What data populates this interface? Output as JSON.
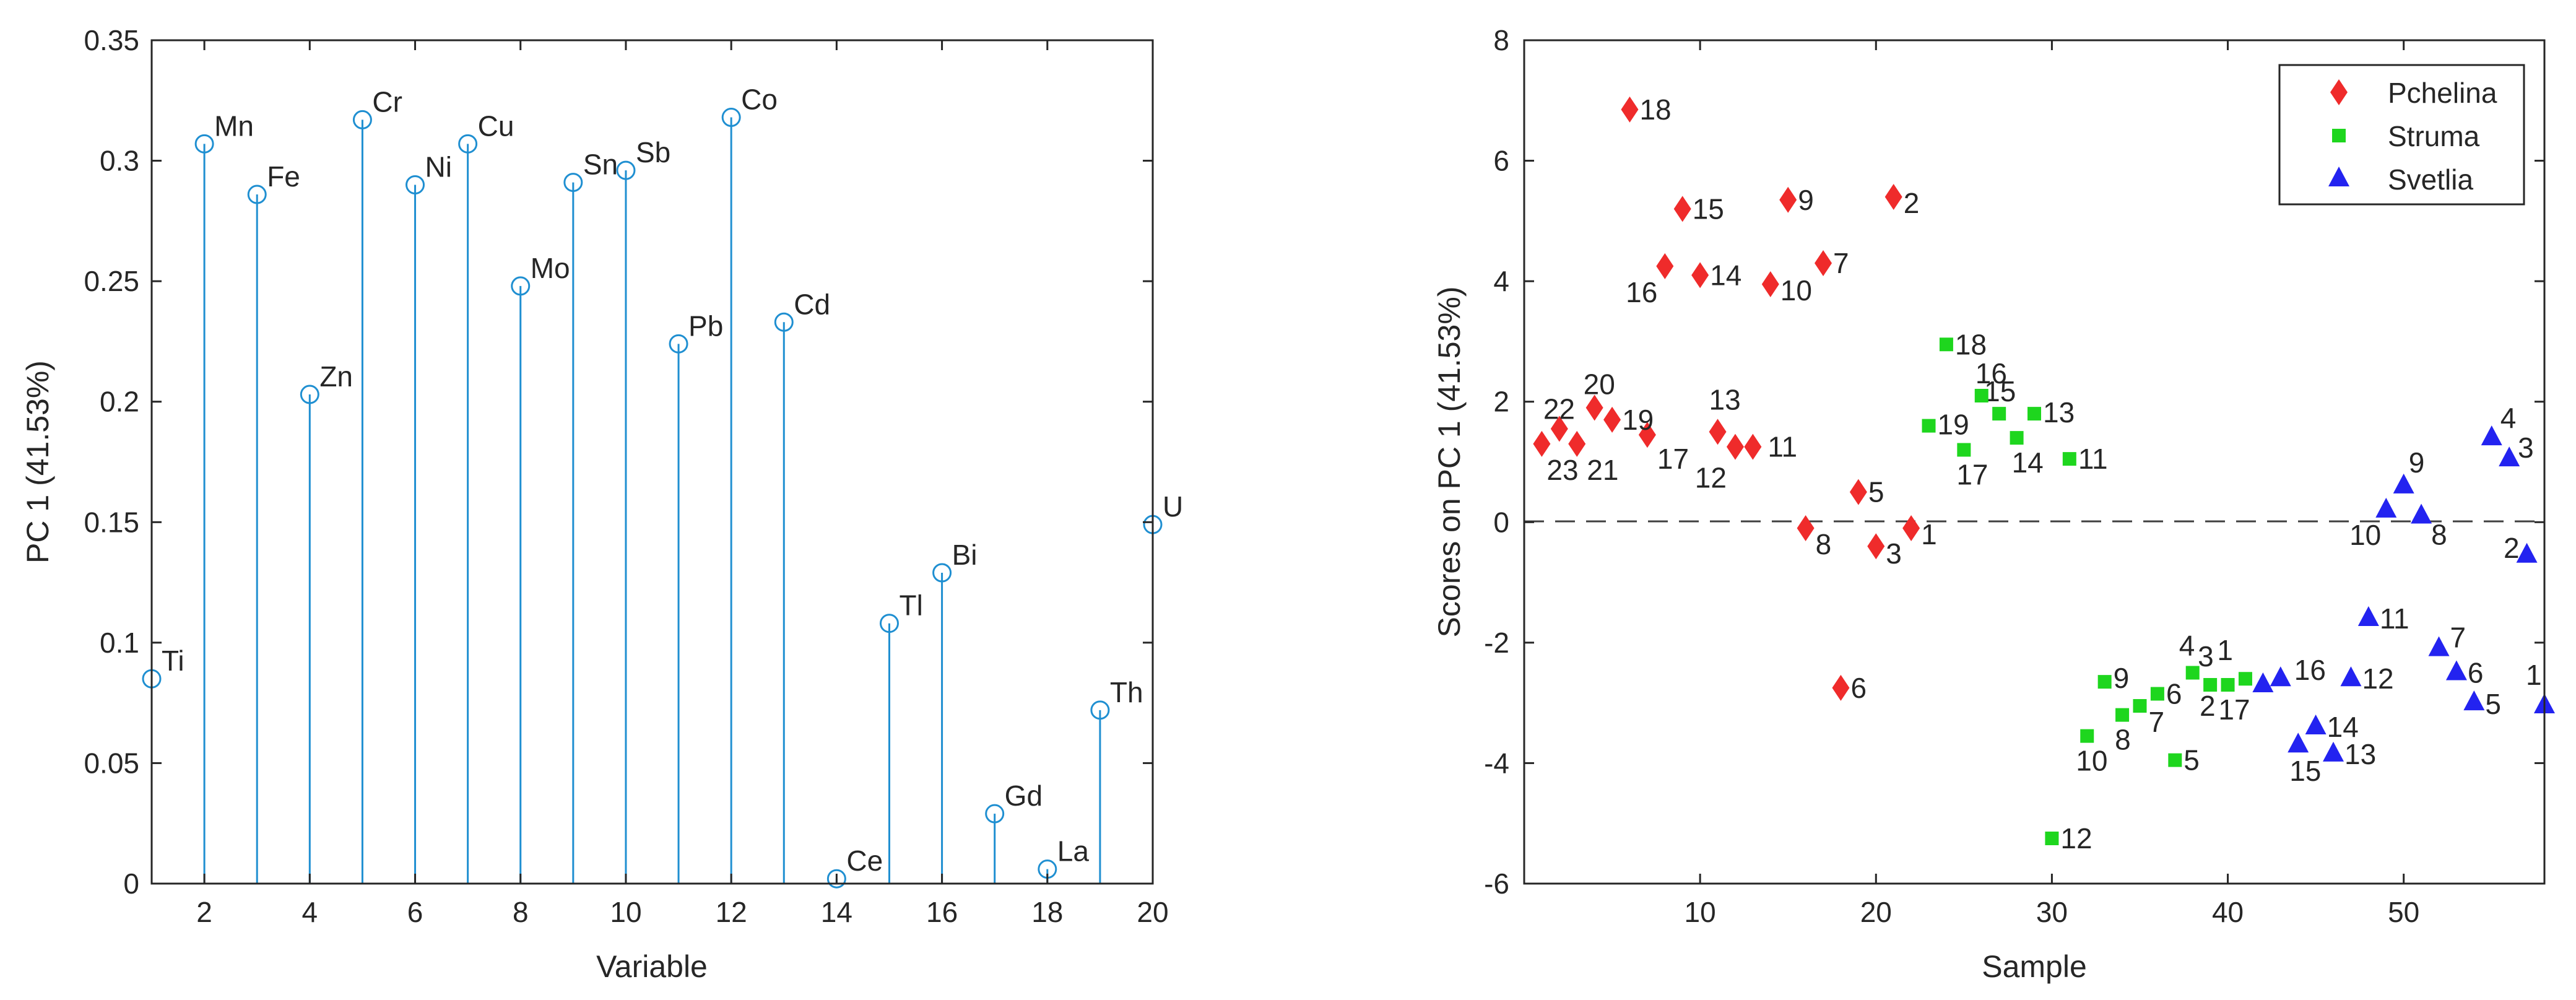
{
  "chart_data": [
    {
      "type": "stem",
      "xlabel": "Variable",
      "ylabel": "PC 1 (41.53%)",
      "xlim": [
        1,
        20
      ],
      "ylim": [
        0,
        0.35
      ],
      "xticks": [
        "2",
        "4",
        "6",
        "8",
        "10",
        "12",
        "14",
        "16",
        "18",
        "20"
      ],
      "yticks": [
        "0",
        "0.05",
        "0.1",
        "0.15",
        "0.2",
        "0.25",
        "0.3",
        "0.35"
      ],
      "marker_color": "#1f8fd1",
      "points": [
        {
          "x": 1,
          "y": 0.085,
          "label": "Ti"
        },
        {
          "x": 2,
          "y": 0.307,
          "label": "Mn"
        },
        {
          "x": 3,
          "y": 0.286,
          "label": "Fe"
        },
        {
          "x": 4,
          "y": 0.203,
          "label": "Zn"
        },
        {
          "x": 5,
          "y": 0.317,
          "label": "Cr"
        },
        {
          "x": 6,
          "y": 0.29,
          "label": "Ni"
        },
        {
          "x": 7,
          "y": 0.307,
          "label": "Cu"
        },
        {
          "x": 8,
          "y": 0.248,
          "label": "Mo"
        },
        {
          "x": 9,
          "y": 0.291,
          "label": "Sn"
        },
        {
          "x": 10,
          "y": 0.296,
          "label": "Sb"
        },
        {
          "x": 11,
          "y": 0.224,
          "label": "Pb"
        },
        {
          "x": 12,
          "y": 0.318,
          "label": "Co"
        },
        {
          "x": 13,
          "y": 0.233,
          "label": "Cd"
        },
        {
          "x": 14,
          "y": 0.002,
          "label": "Ce"
        },
        {
          "x": 15,
          "y": 0.108,
          "label": "Tl"
        },
        {
          "x": 16,
          "y": 0.129,
          "label": "Bi"
        },
        {
          "x": 17,
          "y": 0.029,
          "label": "Gd"
        },
        {
          "x": 18,
          "y": 0.006,
          "label": "La"
        },
        {
          "x": 19,
          "y": 0.072,
          "label": "Th"
        },
        {
          "x": 20,
          "y": 0.149,
          "label": "U"
        }
      ]
    },
    {
      "type": "scatter",
      "xlabel": "Sample",
      "ylabel": "Scores on PC 1 (41.53%)",
      "xlim": [
        0,
        58
      ],
      "ylim": [
        -6,
        8
      ],
      "xticks": [
        "10",
        "20",
        "30",
        "40",
        "50"
      ],
      "yticks": [
        "-6",
        "-4",
        "-2",
        "0",
        "2",
        "4",
        "6",
        "8"
      ],
      "legend": [
        "Pchelina",
        "Struma",
        "Svetlia"
      ],
      "series": [
        {
          "name": "Pchelina",
          "marker": "diamond",
          "color": "#ef2b2b",
          "points": [
            {
              "x": 22,
              "y": -0.1,
              "label": "1"
            },
            {
              "x": 21,
              "y": 5.4,
              "label": "2"
            },
            {
              "x": 20,
              "y": -0.4,
              "label": "3"
            },
            {
              "x": 19,
              "y": 0.5,
              "label": "5"
            },
            {
              "x": 18,
              "y": -2.75,
              "label": "6"
            },
            {
              "x": 17,
              "y": 4.3,
              "label": "7"
            },
            {
              "x": 16,
              "y": -0.1,
              "label": "8"
            },
            {
              "x": 15,
              "y": 5.35,
              "label": "9"
            },
            {
              "x": 14,
              "y": 3.95,
              "label": "10"
            },
            {
              "x": 13,
              "y": 1.25,
              "label": "11"
            },
            {
              "x": 12,
              "y": 1.25,
              "label": "12"
            },
            {
              "x": 11,
              "y": 1.5,
              "label": "13"
            },
            {
              "x": 10,
              "y": 4.1,
              "label": "14"
            },
            {
              "x": 9,
              "y": 5.2,
              "label": "15"
            },
            {
              "x": 8,
              "y": 4.25,
              "label": "16"
            },
            {
              "x": 7,
              "y": 1.45,
              "label": "17"
            },
            {
              "x": 6,
              "y": 6.85,
              "label": "18"
            },
            {
              "x": 5,
              "y": 1.7,
              "label": "19"
            },
            {
              "x": 4,
              "y": 1.9,
              "label": "20"
            },
            {
              "x": 3,
              "y": 1.3,
              "label": "21"
            },
            {
              "x": 2,
              "y": 1.55,
              "label": "22"
            },
            {
              "x": 1,
              "y": 1.3,
              "label": "23"
            }
          ]
        },
        {
          "name": "Struma",
          "marker": "square",
          "color": "#1ed61e",
          "points": [
            {
              "x": 41,
              "y": -2.6,
              "label": "1"
            },
            {
              "x": 40,
              "y": -2.7,
              "label": "2"
            },
            {
              "x": 39,
              "y": -2.7,
              "label": "3"
            },
            {
              "x": 38,
              "y": -2.5,
              "label": "4"
            },
            {
              "x": 37,
              "y": -3.95,
              "label": "5"
            },
            {
              "x": 36,
              "y": -2.85,
              "label": "6"
            },
            {
              "x": 35,
              "y": -3.05,
              "label": "7"
            },
            {
              "x": 34,
              "y": -3.2,
              "label": "8"
            },
            {
              "x": 33,
              "y": -2.65,
              "label": "9"
            },
            {
              "x": 32,
              "y": -3.55,
              "label": "10"
            },
            {
              "x": 31,
              "y": 1.05,
              "label": "11"
            },
            {
              "x": 30,
              "y": -5.25,
              "label": "12"
            },
            {
              "x": 29,
              "y": 1.8,
              "label": "13"
            },
            {
              "x": 28,
              "y": 1.4,
              "label": "14"
            },
            {
              "x": 27,
              "y": 1.8,
              "label": "15"
            },
            {
              "x": 26,
              "y": 2.1,
              "label": "16"
            },
            {
              "x": 25,
              "y": 1.2,
              "label": "17"
            },
            {
              "x": 24,
              "y": 2.95,
              "label": "18"
            },
            {
              "x": 23,
              "y": 1.6,
              "label": "19"
            }
          ]
        },
        {
          "name": "Svetlia",
          "marker": "triangle",
          "color": "#2323f0",
          "points": [
            {
              "x": 58,
              "y": -3.05,
              "label": "1"
            },
            {
              "x": 57,
              "y": -0.55,
              "label": "2"
            },
            {
              "x": 56,
              "y": 1.05,
              "label": "3"
            },
            {
              "x": 55,
              "y": 1.4,
              "label": "4"
            },
            {
              "x": 54,
              "y": -3.0,
              "label": "5"
            },
            {
              "x": 53,
              "y": -2.5,
              "label": "6"
            },
            {
              "x": 52,
              "y": -2.1,
              "label": "7"
            },
            {
              "x": 51,
              "y": 0.1,
              "label": "8"
            },
            {
              "x": 50,
              "y": 0.6,
              "label": "9"
            },
            {
              "x": 49,
              "y": 0.2,
              "label": "10"
            },
            {
              "x": 48,
              "y": -1.6,
              "label": "11"
            },
            {
              "x": 47,
              "y": -2.6,
              "label": "12"
            },
            {
              "x": 46,
              "y": -3.85,
              "label": "13"
            },
            {
              "x": 45,
              "y": -3.4,
              "label": "14"
            },
            {
              "x": 44,
              "y": -3.7,
              "label": "15"
            },
            {
              "x": 43,
              "y": -2.6,
              "label": "16"
            },
            {
              "x": 42,
              "y": -2.7,
              "label": "17"
            }
          ]
        }
      ]
    }
  ]
}
